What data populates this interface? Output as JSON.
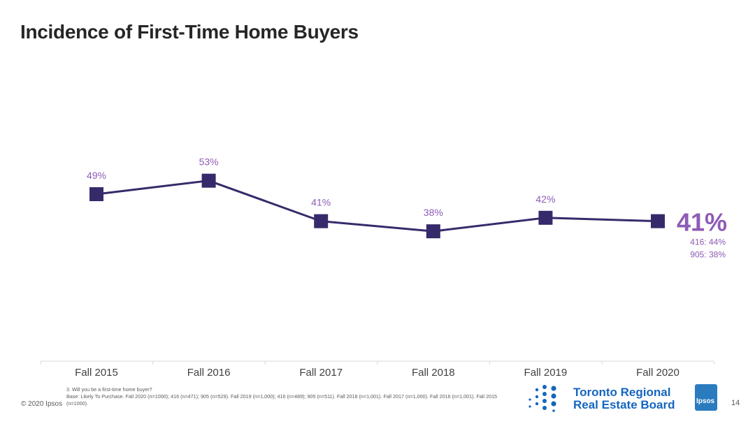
{
  "title": "Incidence of First-Time Home Buyers",
  "chart_data": {
    "type": "line",
    "categories": [
      "Fall 2015",
      "Fall 2016",
      "Fall 2017",
      "Fall 2018",
      "Fall 2019",
      "Fall 2020"
    ],
    "values": [
      49,
      53,
      41,
      38,
      42,
      41
    ],
    "labels": [
      "49%",
      "53%",
      "41%",
      "38%",
      "42%",
      ""
    ],
    "highlight": {
      "value": "41%",
      "sub": [
        "416: 44%",
        "905: 38%"
      ]
    },
    "colors": {
      "line": "#372a6b",
      "label": "#8e5bb5"
    }
  },
  "footnote": {
    "question": "3. Will you be a first-time home buyer?",
    "base": "Base: Likely To Purchase. Fall 2020 (n=1000); 416 (n=471); 905 (n=529). Fall 2019 (n=1,000); 416 (n=489); 905 (n=511). Fall 2018 (n=1,001). Fall 2017 (n=1,000). Fall 2016 (n=1,001). Fall 2015 (n=1000)."
  },
  "copyright": "© 2020 Ipsos",
  "logos": {
    "trreb_line1": "Toronto Regional",
    "trreb_line2": "Real Estate Board",
    "ipsos": "Ipsos"
  },
  "page_number": "14"
}
